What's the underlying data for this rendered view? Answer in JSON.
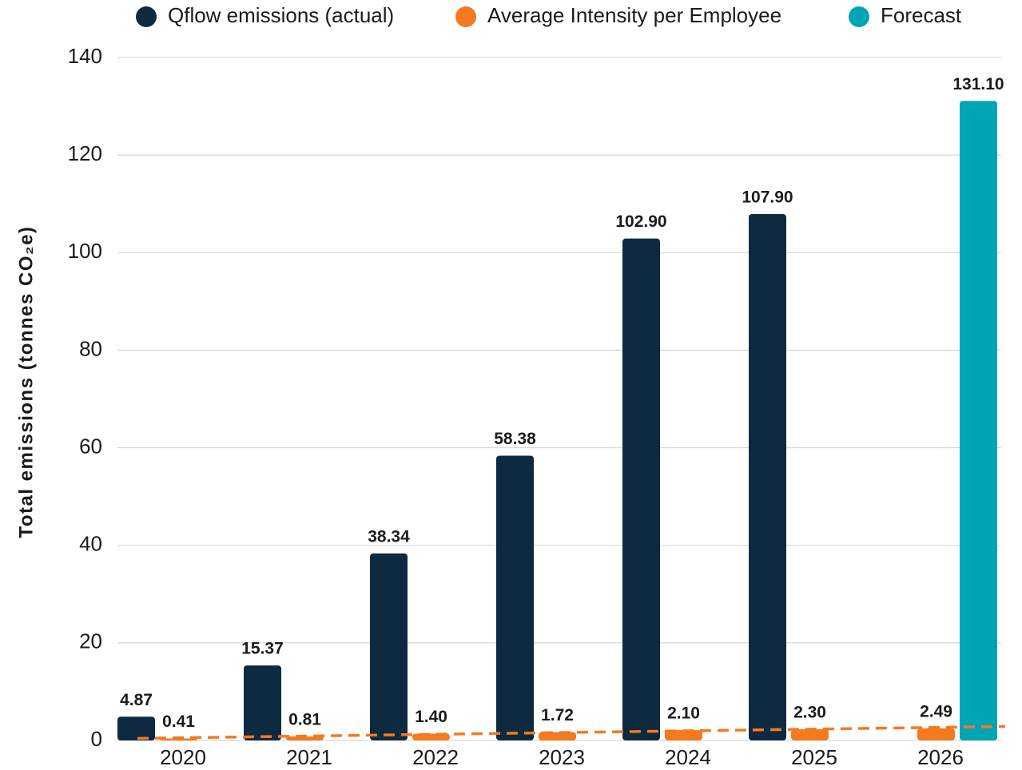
{
  "chart_data": {
    "type": "bar",
    "y_axis_label": "Total emissions (tonnes CO₂e)",
    "categories": [
      "2020",
      "2021",
      "2022",
      "2023",
      "2024",
      "2025",
      "2026"
    ],
    "series": [
      {
        "name": "Qflow emissions (actual)",
        "color": "#0d2a40",
        "values": [
          4.87,
          15.37,
          38.34,
          58.38,
          102.9,
          107.9,
          null
        ],
        "value_labels": [
          "4.87",
          "15.37",
          "38.34",
          "58.38",
          "102.90",
          "107.90",
          null
        ]
      },
      {
        "name": "Average Intensity per Employee",
        "color": "#f47a20",
        "values": [
          0.41,
          0.81,
          1.4,
          1.72,
          2.1,
          2.3,
          2.49
        ],
        "value_labels": [
          "0.41",
          "0.81",
          "1.40",
          "1.72",
          "2.10",
          "2.30",
          "2.49"
        ],
        "trendline": true
      },
      {
        "name": "Forecast",
        "color": "#00a5b5",
        "values": [
          null,
          null,
          null,
          null,
          null,
          null,
          131.1
        ],
        "value_labels": [
          null,
          null,
          null,
          null,
          null,
          null,
          "131.10"
        ]
      }
    ],
    "ylim": [
      0,
      140
    ],
    "yticks": [
      0,
      20,
      40,
      60,
      80,
      100,
      120,
      140
    ],
    "grid": true,
    "legend": "top"
  }
}
